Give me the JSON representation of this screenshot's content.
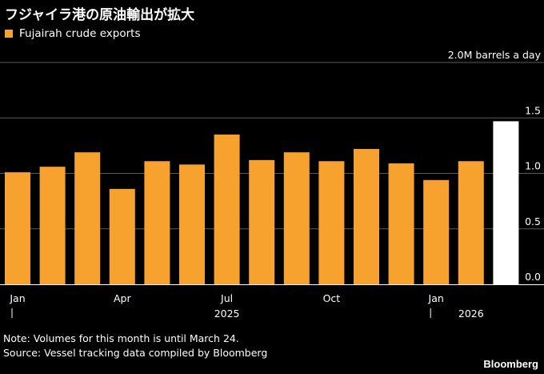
{
  "title": "フジャイラ港の原油輸出が拡大",
  "note": "Note: Volumes for this month is until March 24.",
  "source": "Source: Vessel tracking data compiled by Bloomberg",
  "brand": "Bloomberg",
  "colors": {
    "bar": "#F7A22F",
    "current": "#FFFFFF",
    "grid": "#5a5a5a",
    "axis": "#ffffff",
    "background": "#000000"
  },
  "chart_data": {
    "type": "bar",
    "categories": [
      "2025-01",
      "2025-02",
      "2025-03",
      "2025-04",
      "2025-05",
      "2025-06",
      "2025-07",
      "2025-08",
      "2025-09",
      "2025-10",
      "2025-11",
      "2025-12",
      "2026-01",
      "2026-02",
      "2026-03"
    ],
    "series": [
      {
        "name": "Fujairah crude exports",
        "values": [
          1.01,
          1.06,
          1.19,
          0.86,
          1.11,
          1.08,
          1.35,
          1.12,
          1.19,
          1.11,
          1.22,
          1.09,
          0.94,
          1.11,
          1.47
        ]
      }
    ],
    "highlight_last": true,
    "ylim": [
      0,
      2.0
    ],
    "yticks": [
      {
        "value": 0,
        "label": "0.0"
      },
      {
        "value": 0.5,
        "label": "0.5"
      },
      {
        "value": 1.0,
        "label": "1.0"
      },
      {
        "value": 1.5,
        "label": "1.5"
      },
      {
        "value": 2.0,
        "label": "2.0M barrels a day"
      }
    ],
    "xticks": [
      {
        "index": 0,
        "label": "Jan"
      },
      {
        "index": 3,
        "label": "Apr"
      },
      {
        "index": 6,
        "label": "Jul"
      },
      {
        "index": 9,
        "label": "Oct"
      },
      {
        "index": 12,
        "label": "Jan"
      }
    ],
    "year_labels": [
      {
        "index": 6,
        "label": "2025"
      },
      {
        "index": 13,
        "label": "2026"
      }
    ],
    "year_separators": [
      0,
      12
    ],
    "grid": true,
    "legend_position": "top-left"
  }
}
